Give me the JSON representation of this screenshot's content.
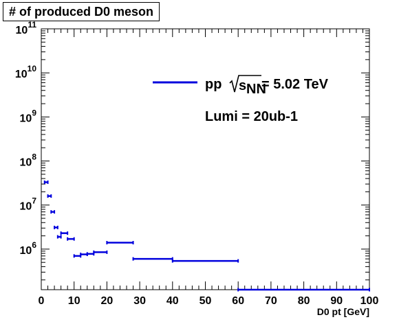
{
  "chart_data": {
    "type": "scatter",
    "title": "# of produced D0 meson",
    "xlabel": "D0 pt [GeV]",
    "ylabel": "",
    "xlim": [
      0,
      100
    ],
    "ylim": [
      120000,
      100000000000
    ],
    "ylog": true,
    "grid": false,
    "x_ticks": [
      0,
      10,
      20,
      30,
      40,
      50,
      60,
      70,
      80,
      90,
      100
    ],
    "y_ticks": [
      {
        "value": 1000000,
        "base": "10",
        "exp": "6"
      },
      {
        "value": 10000000,
        "base": "10",
        "exp": "7"
      },
      {
        "value": 100000000,
        "base": "10",
        "exp": "8"
      },
      {
        "value": 1000000000,
        "base": "10",
        "exp": "9"
      },
      {
        "value": 10000000000,
        "base": "10",
        "exp": "10"
      },
      {
        "value": 100000000000,
        "base": "10",
        "exp": "11"
      }
    ],
    "legend": {
      "placement": "top-right",
      "entry_pre": "pp",
      "entry_sub": "NN",
      "entry_post": "= 5.02 TeV",
      "note": "Lumi = 20ub-1"
    },
    "series": [
      {
        "color": "#0000dd",
        "points": [
          {
            "x_low": 1,
            "x_high": 2,
            "y": 33000000
          },
          {
            "x_low": 2,
            "x_high": 3,
            "y": 16000000
          },
          {
            "x_low": 3,
            "x_high": 4,
            "y": 7000000
          },
          {
            "x_low": 4,
            "x_high": 5,
            "y": 3100000
          },
          {
            "x_low": 5,
            "x_high": 6,
            "y": 1900000
          },
          {
            "x_low": 6,
            "x_high": 8,
            "y": 2300000
          },
          {
            "x_low": 8,
            "x_high": 10,
            "y": 1700000
          },
          {
            "x_low": 10,
            "x_high": 12,
            "y": 700000
          },
          {
            "x_low": 12,
            "x_high": 14,
            "y": 760000
          },
          {
            "x_low": 14,
            "x_high": 16,
            "y": 780000
          },
          {
            "x_low": 16,
            "x_high": 20,
            "y": 850000
          },
          {
            "x_low": 20,
            "x_high": 28,
            "y": 1400000
          },
          {
            "x_low": 28,
            "x_high": 40,
            "y": 600000
          },
          {
            "x_low": 40,
            "x_high": 60,
            "y": 540000
          },
          {
            "x_low": 60,
            "x_high": 100,
            "y": 120000
          }
        ]
      }
    ]
  }
}
